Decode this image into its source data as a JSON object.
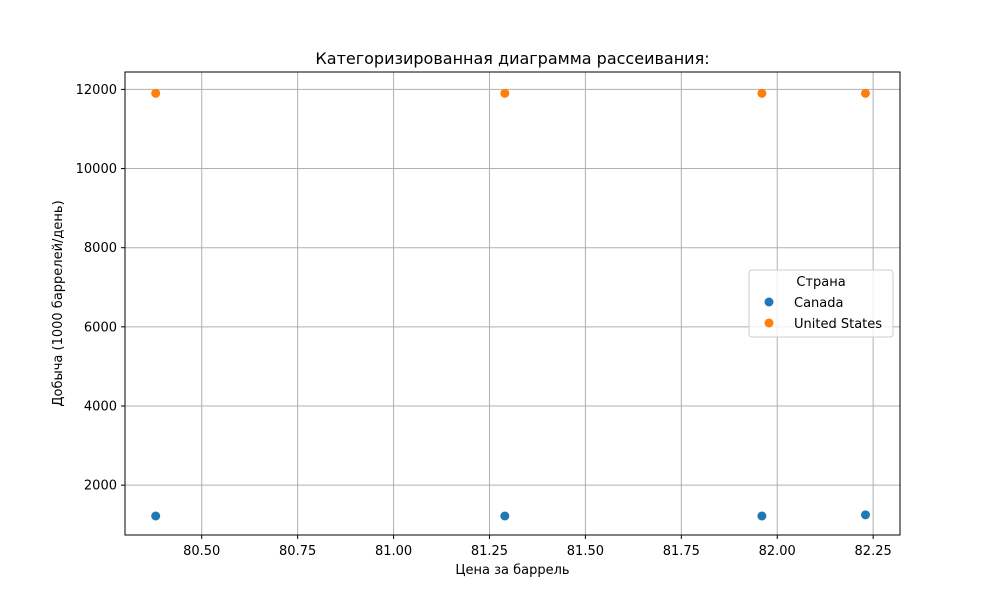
{
  "chart_data": {
    "type": "scatter",
    "title": "Категоризированная диаграмма рассеивания:",
    "xlabel": "Цена за баррель",
    "ylabel": "Добыча (1000 баррелей/день)",
    "xlim": [
      80.3,
      82.32
    ],
    "ylim": [
      740,
      12440
    ],
    "x_ticks": [
      80.5,
      80.75,
      81.0,
      81.25,
      81.5,
      81.75,
      82.0,
      82.25
    ],
    "x_tick_labels": [
      "80.50",
      "80.75",
      "81.00",
      "81.25",
      "81.50",
      "81.75",
      "82.00",
      "82.25"
    ],
    "y_ticks": [
      2000,
      4000,
      6000,
      8000,
      10000,
      12000
    ],
    "y_tick_labels": [
      "2000",
      "4000",
      "6000",
      "8000",
      "10000",
      "12000"
    ],
    "grid": true,
    "legend": {
      "title": "Страна",
      "placement": "center-right"
    },
    "series": [
      {
        "name": "Canada",
        "color": "#1f77b4",
        "points": [
          {
            "x": 80.38,
            "y": 1220
          },
          {
            "x": 81.29,
            "y": 1220
          },
          {
            "x": 81.96,
            "y": 1220
          },
          {
            "x": 82.23,
            "y": 1250
          }
        ]
      },
      {
        "name": "United States",
        "color": "#ff7f0e",
        "points": [
          {
            "x": 80.38,
            "y": 11900
          },
          {
            "x": 81.29,
            "y": 11900
          },
          {
            "x": 81.96,
            "y": 11900
          },
          {
            "x": 82.23,
            "y": 11900
          }
        ]
      }
    ]
  }
}
